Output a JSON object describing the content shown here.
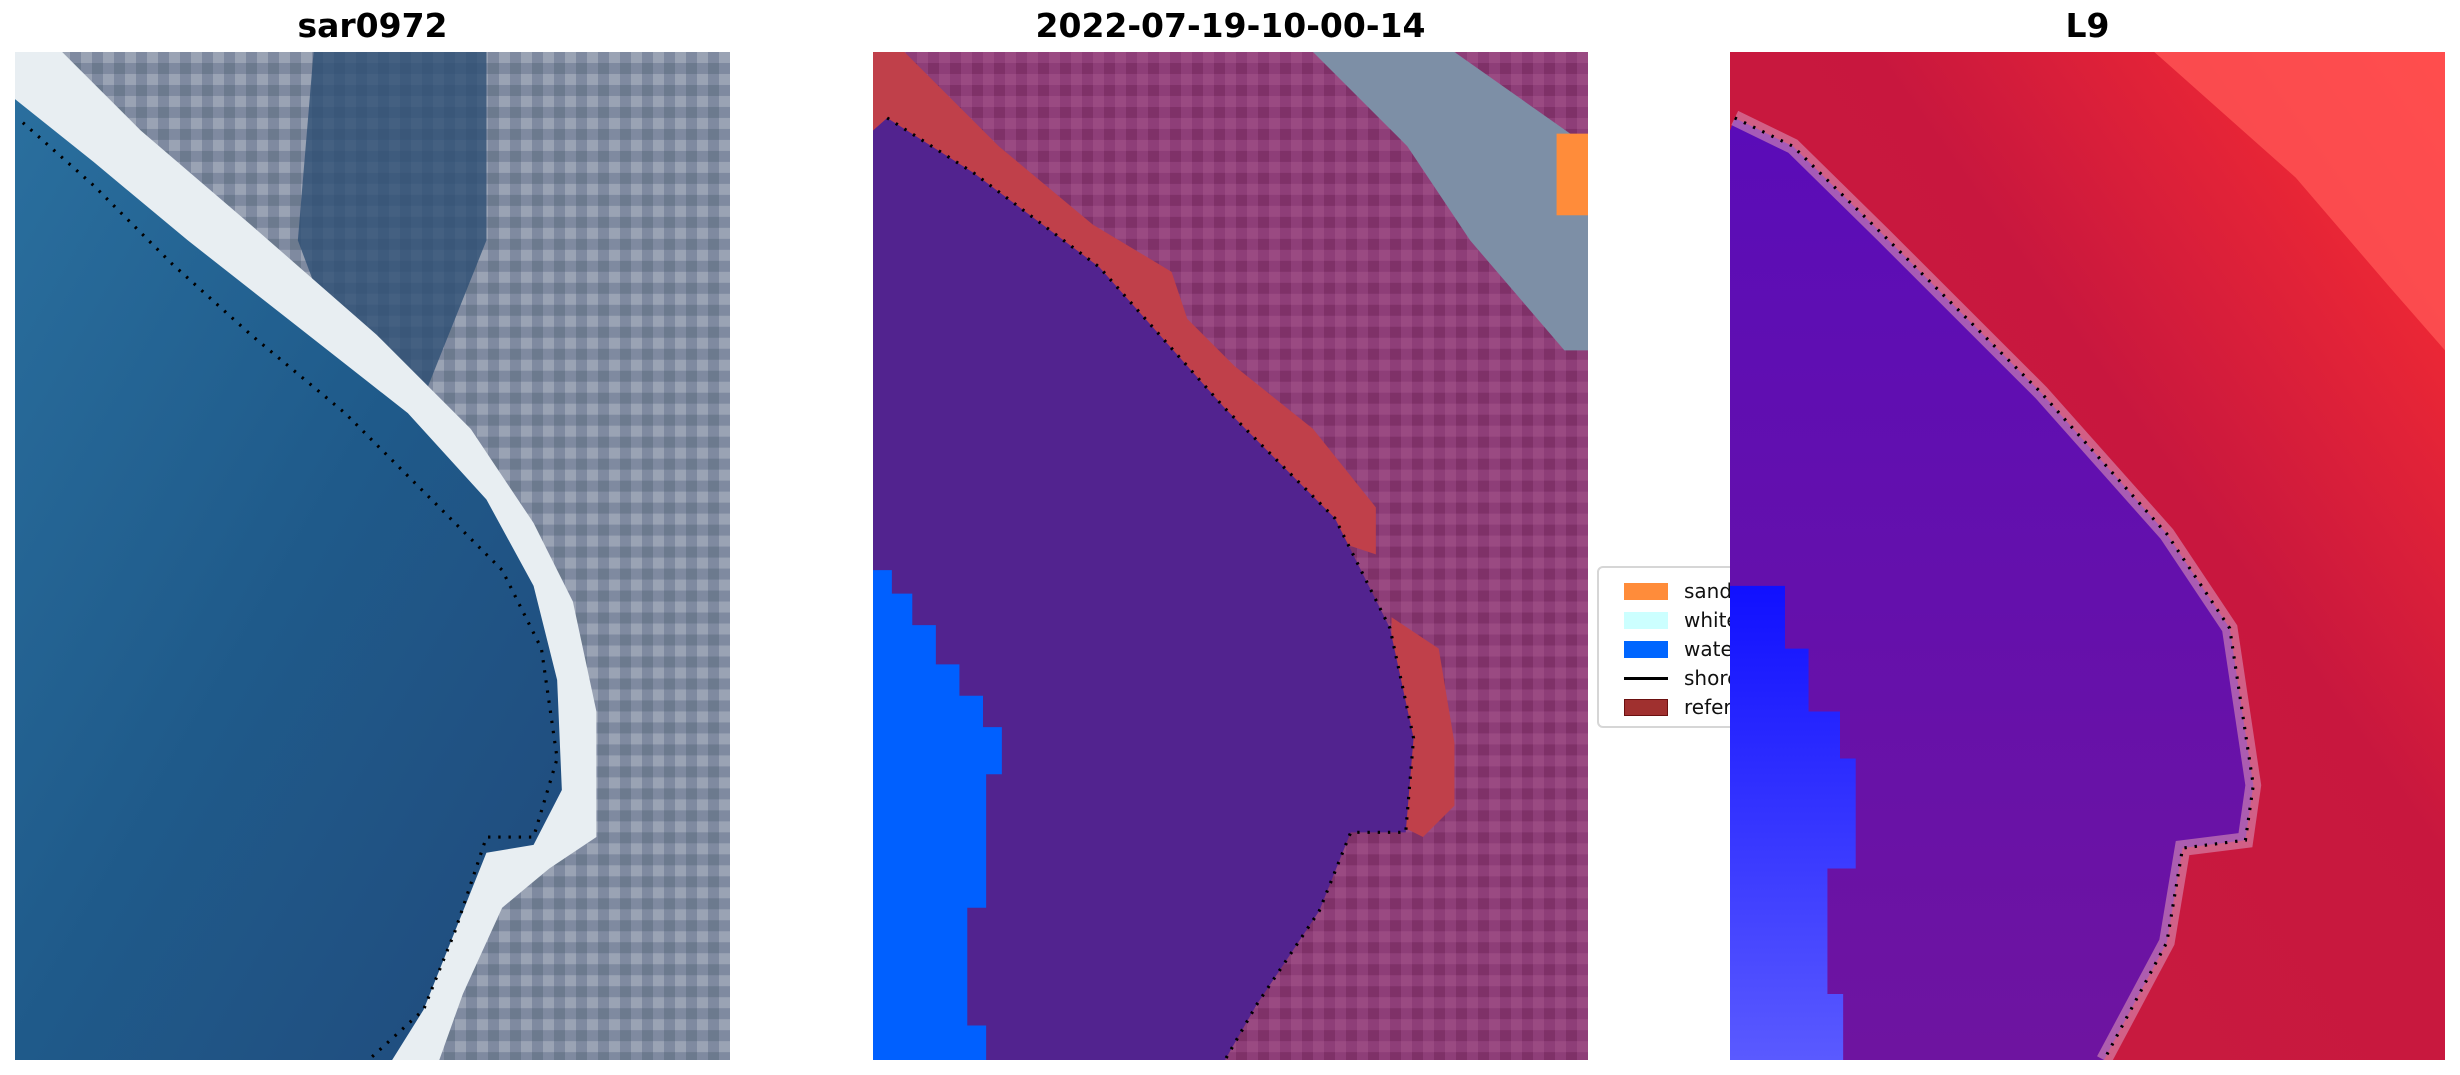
{
  "panels": [
    {
      "title": "sar0972"
    },
    {
      "title": "2022-07-19-10-00-14"
    },
    {
      "title": "L9"
    }
  ],
  "legend": {
    "items": [
      {
        "label": "sand",
        "color": "#ff8c3a",
        "kind": "patch"
      },
      {
        "label": "whitewater",
        "color": "#ccffff",
        "kind": "patch"
      },
      {
        "label": "water",
        "color": "#0066ff",
        "kind": "patch"
      },
      {
        "label": "shoreline",
        "color": "#000000",
        "kind": "line"
      },
      {
        "label": "reference",
        "color": "#a0302f",
        "kind": "patch"
      }
    ]
  },
  "colors": {
    "classified_water_body": "#52238f",
    "land_overlay": "#8a3a6e",
    "l9_land": "#c8173e",
    "l9_water": "#6a0fa0"
  }
}
